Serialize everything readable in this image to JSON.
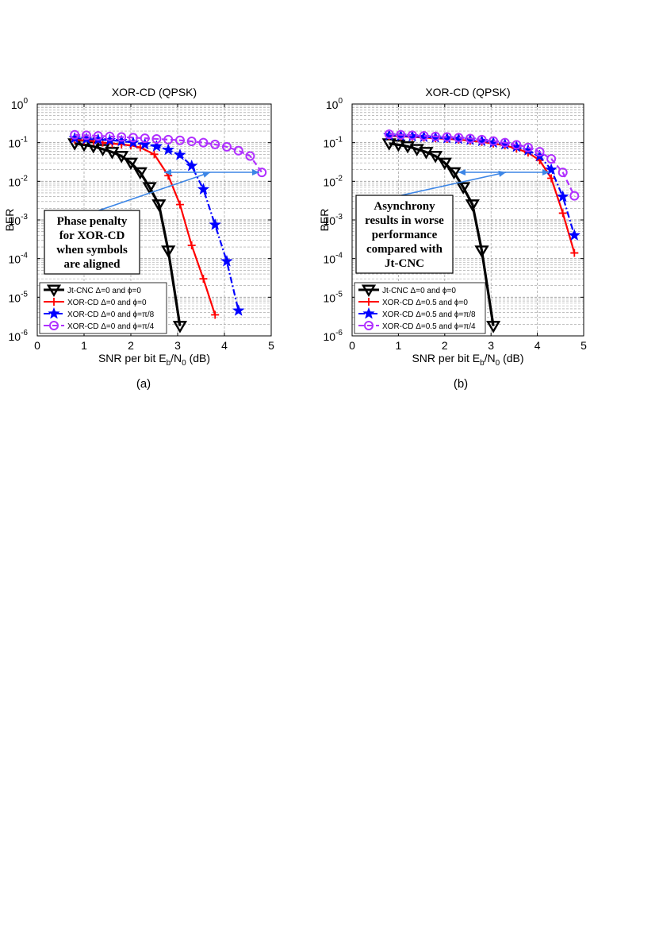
{
  "chart_data": [
    {
      "type": "line",
      "title": "XOR-CD (QPSK)",
      "xlabel": {
        "pre": "SNR per bit E",
        "sub1": "b",
        "mid": "/N",
        "sub2": "0",
        "post": " (dB)"
      },
      "ylabel": "BER",
      "xlim": [
        0,
        5
      ],
      "ylim": [
        1e-06,
        1
      ],
      "yscale": "log",
      "grid": true,
      "xticks": [
        "0",
        "1",
        "2",
        "3",
        "4",
        "5"
      ],
      "yticks": [
        {
          "base": "10",
          "exp": "-6"
        },
        {
          "base": "10",
          "exp": "-5"
        },
        {
          "base": "10",
          "exp": "-4"
        },
        {
          "base": "10",
          "exp": "-3"
        },
        {
          "base": "10",
          "exp": "-2"
        },
        {
          "base": "10",
          "exp": "-1"
        },
        {
          "base": "10",
          "exp": "0"
        }
      ],
      "legend_position": "bottom-left",
      "caption": "(a)",
      "annotation": {
        "lines": [
          "Phase penalty",
          "for XOR-CD",
          "when symbols",
          "are aligned"
        ]
      },
      "series": [
        {
          "name": "Jt-CNC Δ=0 and ϕ=0",
          "color": "#000000",
          "marker": "triangle-down",
          "dash": "solid",
          "x": [
            0.8,
            1.0,
            1.2,
            1.4,
            1.6,
            1.8,
            2.0,
            2.2,
            2.4,
            2.6,
            2.8,
            3.05
          ],
          "y": [
            0.095,
            0.088,
            0.08,
            0.068,
            0.057,
            0.045,
            0.03,
            0.017,
            0.007,
            0.0025,
            0.00016,
            1.8e-06
          ]
        },
        {
          "name": "XOR-CD Δ=0 and ϕ=0",
          "color": "#ff0000",
          "marker": "plus",
          "dash": "solid",
          "x": [
            0.8,
            1.0,
            1.2,
            1.4,
            1.6,
            1.8,
            2.0,
            2.2,
            2.5,
            2.8,
            3.05,
            3.3,
            3.55,
            3.8
          ],
          "y": [
            0.12,
            0.115,
            0.11,
            0.1,
            0.095,
            0.09,
            0.085,
            0.075,
            0.05,
            0.014,
            0.0025,
            0.00022,
            3e-05,
            3.5e-06
          ]
        },
        {
          "name": "XOR-CD Δ=0 and ϕ=π/8",
          "color": "#0000ff",
          "marker": "star",
          "dash": "dashdot",
          "x": [
            0.8,
            1.05,
            1.3,
            1.55,
            1.8,
            2.05,
            2.3,
            2.55,
            2.8,
            3.05,
            3.3,
            3.55,
            3.8,
            4.05,
            4.3
          ],
          "y": [
            0.13,
            0.125,
            0.12,
            0.115,
            0.11,
            0.1,
            0.09,
            0.08,
            0.065,
            0.048,
            0.025,
            0.0062,
            0.00075,
            8.5e-05,
            4.5e-06
          ]
        },
        {
          "name": "XOR-CD Δ=0 and ϕ=π/4",
          "color": "#b030ff",
          "marker": "circle",
          "dash": "dashed",
          "x": [
            0.8,
            1.05,
            1.3,
            1.55,
            1.8,
            2.05,
            2.3,
            2.55,
            2.8,
            3.05,
            3.3,
            3.55,
            3.8,
            4.05,
            4.3,
            4.55,
            4.8
          ],
          "y": [
            0.16,
            0.155,
            0.15,
            0.145,
            0.14,
            0.135,
            0.13,
            0.125,
            0.12,
            0.115,
            0.108,
            0.1,
            0.09,
            0.078,
            0.062,
            0.045,
            0.017
          ]
        }
      ]
    },
    {
      "type": "line",
      "title": "XOR-CD (QPSK)",
      "xlabel": {
        "pre": "SNR per bit E",
        "sub1": "b",
        "mid": "/N",
        "sub2": "0",
        "post": " (dB)"
      },
      "ylabel": "BER",
      "xlim": [
        0,
        5
      ],
      "ylim": [
        1e-06,
        1
      ],
      "yscale": "log",
      "grid": true,
      "xticks": [
        "0",
        "1",
        "2",
        "3",
        "4",
        "5"
      ],
      "yticks": [
        {
          "base": "10",
          "exp": "-6"
        },
        {
          "base": "10",
          "exp": "-5"
        },
        {
          "base": "10",
          "exp": "-4"
        },
        {
          "base": "10",
          "exp": "-3"
        },
        {
          "base": "10",
          "exp": "-2"
        },
        {
          "base": "10",
          "exp": "-1"
        },
        {
          "base": "10",
          "exp": "0"
        }
      ],
      "legend_position": "bottom-left",
      "caption": "(b)",
      "annotation": {
        "lines": [
          "Asynchrony",
          "results in worse",
          "performance",
          "compared with",
          "Jt-CNC"
        ]
      },
      "series": [
        {
          "name": "Jt-CNC Δ=0 and ϕ=0",
          "color": "#000000",
          "marker": "triangle-down",
          "dash": "solid",
          "x": [
            0.8,
            1.0,
            1.2,
            1.4,
            1.6,
            1.8,
            2.0,
            2.2,
            2.4,
            2.6,
            2.8,
            3.05
          ],
          "y": [
            0.095,
            0.088,
            0.08,
            0.068,
            0.057,
            0.045,
            0.03,
            0.017,
            0.007,
            0.0025,
            0.00016,
            1.8e-06
          ]
        },
        {
          "name": "XOR-CD Δ=0.5 and ϕ=0",
          "color": "#ff0000",
          "marker": "plus",
          "dash": "solid",
          "x": [
            0.8,
            1.05,
            1.3,
            1.55,
            1.8,
            2.05,
            2.3,
            2.55,
            2.8,
            3.05,
            3.3,
            3.55,
            3.8,
            4.05,
            4.3,
            4.55,
            4.8
          ],
          "y": [
            0.15,
            0.145,
            0.14,
            0.135,
            0.13,
            0.125,
            0.12,
            0.112,
            0.105,
            0.095,
            0.085,
            0.07,
            0.055,
            0.035,
            0.012,
            0.0015,
            0.00014
          ]
        },
        {
          "name": "XOR-CD Δ=0.5 and ϕ=π/8",
          "color": "#0000ff",
          "marker": "star",
          "dash": "dashdot",
          "x": [
            0.8,
            1.05,
            1.3,
            1.55,
            1.8,
            2.05,
            2.3,
            2.55,
            2.8,
            3.05,
            3.3,
            3.55,
            3.8,
            4.05,
            4.3,
            4.55,
            4.8
          ],
          "y": [
            0.155,
            0.15,
            0.145,
            0.14,
            0.135,
            0.13,
            0.125,
            0.118,
            0.11,
            0.1,
            0.09,
            0.078,
            0.063,
            0.045,
            0.02,
            0.004,
            0.0004
          ]
        },
        {
          "name": "XOR-CD Δ=0.5 and ϕ=π/4",
          "color": "#b030ff",
          "marker": "circle",
          "dash": "dashed",
          "x": [
            0.8,
            1.05,
            1.3,
            1.55,
            1.8,
            2.05,
            2.3,
            2.55,
            2.8,
            3.05,
            3.3,
            3.55,
            3.8,
            4.05,
            4.3,
            4.55,
            4.8
          ],
          "y": [
            0.165,
            0.16,
            0.155,
            0.15,
            0.145,
            0.14,
            0.135,
            0.128,
            0.12,
            0.11,
            0.1,
            0.088,
            0.075,
            0.058,
            0.038,
            0.017,
            0.0042
          ]
        }
      ]
    }
  ]
}
